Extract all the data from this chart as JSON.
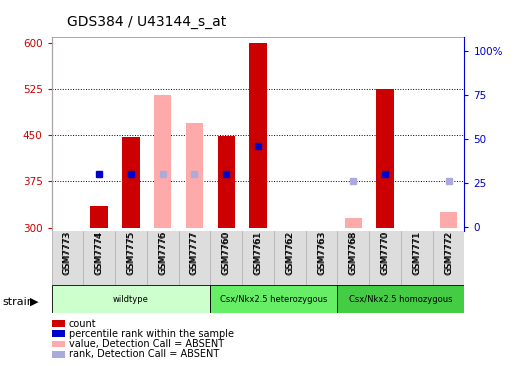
{
  "title": "GDS384 / U43144_s_at",
  "samples": [
    "GSM7773",
    "GSM7774",
    "GSM7775",
    "GSM7776",
    "GSM7777",
    "GSM7760",
    "GSM7761",
    "GSM7762",
    "GSM7763",
    "GSM7768",
    "GSM7770",
    "GSM7771",
    "GSM7772"
  ],
  "count_values": [
    300,
    335,
    447,
    300,
    448,
    448,
    600,
    300,
    300,
    300,
    525,
    300,
    300
  ],
  "count_absent": [
    false,
    false,
    false,
    true,
    true,
    false,
    false,
    false,
    false,
    true,
    false,
    false,
    true
  ],
  "absent_value_bars": [
    null,
    null,
    null,
    515,
    470,
    null,
    null,
    null,
    null,
    315,
    null,
    null,
    325
  ],
  "rank_y2": [
    null,
    30,
    30,
    null,
    null,
    30,
    46,
    null,
    null,
    null,
    30,
    null,
    null
  ],
  "rank_absent_y2": [
    null,
    null,
    null,
    30,
    30,
    null,
    null,
    null,
    null,
    26,
    null,
    null,
    26
  ],
  "ylim": [
    295,
    610
  ],
  "yticks": [
    300,
    375,
    450,
    525,
    600
  ],
  "y2ticks": [
    0,
    25,
    50,
    75,
    100
  ],
  "y2lim": [
    -2,
    108
  ],
  "strain_groups": [
    {
      "label": "wildtype",
      "start": 0,
      "end": 5,
      "color": "#ccffcc"
    },
    {
      "label": "Csx/Nkx2.5 heterozygous",
      "start": 5,
      "end": 9,
      "color": "#66ee66"
    },
    {
      "label": "Csx/Nkx2.5 homozygous",
      "start": 9,
      "end": 13,
      "color": "#44cc44"
    }
  ],
  "count_color": "#cc0000",
  "rank_color": "#0000cc",
  "absent_value_color": "#ffaaaa",
  "absent_rank_color": "#aaaadd",
  "bg_color": "#ffffff",
  "left_axis_color": "#cc0000",
  "right_axis_color": "#0000cc",
  "bar_base": 300
}
